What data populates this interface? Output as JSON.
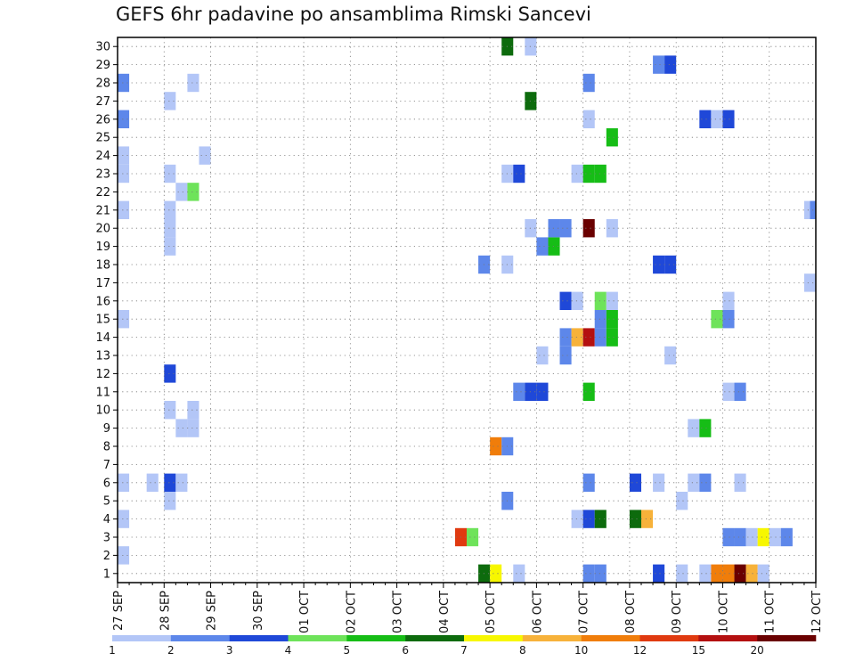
{
  "chart_data": {
    "type": "heatmap",
    "title": "GEFS 6hr padavine po ansamblima Rimski Sancevi",
    "xlabel": "",
    "ylabel": "",
    "x_ticks": [
      "27 SEP",
      "28 SEP",
      "29 SEP",
      "30 SEP",
      "01 OCT",
      "02 OCT",
      "03 OCT",
      "04 OCT",
      "05 OCT",
      "06 OCT",
      "07 OCT",
      "08 OCT",
      "09 OCT",
      "10 OCT",
      "11 OCT",
      "12 OCT"
    ],
    "y_ticks": [
      "1",
      "2",
      "3",
      "4",
      "5",
      "6",
      "7",
      "8",
      "9",
      "10",
      "11",
      "12",
      "13",
      "14",
      "15",
      "16",
      "17",
      "18",
      "19",
      "20",
      "21",
      "22",
      "23",
      "24",
      "25",
      "26",
      "27",
      "28",
      "29",
      "30"
    ],
    "xlim_steps": [
      0,
      60
    ],
    "ylim_members": [
      0.5,
      30.5
    ],
    "grid": true,
    "colorbar": {
      "labels": [
        "1",
        "2",
        "3",
        "4",
        "5",
        "6",
        "7",
        "8",
        "10",
        "12",
        "15",
        "20"
      ],
      "colors": [
        "#b3c6f7",
        "#5d87ea",
        "#1f48d8",
        "#6ee35a",
        "#16bd16",
        "#0d6b0d",
        "#f7f700",
        "#f7b23a",
        "#f07d0a",
        "#e03a10",
        "#b41010",
        "#6a0000"
      ]
    },
    "points": [
      [
        0.5,
        28,
        1
      ],
      [
        0.5,
        26,
        1
      ],
      [
        0.5,
        24,
        0
      ],
      [
        0.5,
        23,
        0
      ],
      [
        0.5,
        21,
        0
      ],
      [
        0.5,
        15,
        0
      ],
      [
        0.5,
        6,
        0
      ],
      [
        0.5,
        4,
        0
      ],
      [
        0.5,
        2,
        0
      ],
      [
        3,
        6,
        0
      ],
      [
        4.5,
        27,
        0
      ],
      [
        4.5,
        23,
        0
      ],
      [
        4.5,
        21,
        0
      ],
      [
        4.5,
        20,
        0
      ],
      [
        4.5,
        19,
        0
      ],
      [
        4.5,
        12,
        2
      ],
      [
        4.5,
        10,
        0
      ],
      [
        4.5,
        6,
        2
      ],
      [
        4.5,
        5,
        0
      ],
      [
        5.5,
        22,
        0
      ],
      [
        5.5,
        9,
        0
      ],
      [
        5.5,
        6,
        0
      ],
      [
        6.5,
        28,
        0
      ],
      [
        6.5,
        22,
        3
      ],
      [
        6.5,
        10,
        0
      ],
      [
        6.5,
        9,
        0
      ],
      [
        7.5,
        24,
        0
      ],
      [
        29.5,
        3,
        9
      ],
      [
        30.5,
        3,
        3
      ],
      [
        31.5,
        18,
        1
      ],
      [
        31.5,
        1,
        5
      ],
      [
        32.5,
        8,
        8
      ],
      [
        32.5,
        1,
        6
      ],
      [
        33.5,
        30,
        5
      ],
      [
        33.5,
        23,
        0
      ],
      [
        33.5,
        18,
        0
      ],
      [
        33.5,
        8,
        1
      ],
      [
        33.5,
        5,
        1
      ],
      [
        34.5,
        23,
        2
      ],
      [
        34.5,
        11,
        1
      ],
      [
        34.5,
        1,
        0
      ],
      [
        35.5,
        30,
        0
      ],
      [
        35.5,
        27,
        5
      ],
      [
        35.5,
        20,
        0
      ],
      [
        35.5,
        11,
        2
      ],
      [
        36.5,
        19,
        1
      ],
      [
        36.5,
        13,
        0
      ],
      [
        36.5,
        11,
        2
      ],
      [
        37.5,
        19,
        4
      ],
      [
        37.5,
        20,
        1
      ],
      [
        38.5,
        20,
        1
      ],
      [
        38.5,
        16,
        2
      ],
      [
        38.5,
        14,
        1
      ],
      [
        38.5,
        13,
        1
      ],
      [
        39.5,
        23,
        0
      ],
      [
        39.5,
        16,
        0
      ],
      [
        39.5,
        14,
        7
      ],
      [
        39.5,
        4,
        0
      ],
      [
        40.5,
        28,
        1
      ],
      [
        40.5,
        26,
        0
      ],
      [
        40.5,
        23,
        4
      ],
      [
        40.5,
        20,
        11
      ],
      [
        40.5,
        14,
        10
      ],
      [
        40.5,
        11,
        4
      ],
      [
        40.5,
        6,
        1
      ],
      [
        40.5,
        4,
        2
      ],
      [
        40.5,
        1,
        1
      ],
      [
        41.5,
        23,
        4
      ],
      [
        41.5,
        16,
        3
      ],
      [
        41.5,
        15,
        1
      ],
      [
        41.5,
        14,
        1
      ],
      [
        41.5,
        4,
        5
      ],
      [
        41.5,
        1,
        1
      ],
      [
        42.5,
        25,
        4
      ],
      [
        42.5,
        20,
        0
      ],
      [
        42.5,
        16,
        0
      ],
      [
        42.5,
        15,
        4
      ],
      [
        42.5,
        14,
        4
      ],
      [
        44.5,
        6,
        2
      ],
      [
        44.5,
        4,
        5
      ],
      [
        45.5,
        4,
        7
      ],
      [
        46.5,
        6,
        0
      ],
      [
        46.5,
        29,
        1
      ],
      [
        47.5,
        29,
        2
      ],
      [
        46.5,
        18,
        2
      ],
      [
        47.5,
        18,
        2
      ],
      [
        46.5,
        1,
        2
      ],
      [
        47.5,
        13,
        0
      ],
      [
        48.5,
        5,
        0
      ],
      [
        48.5,
        1,
        0
      ],
      [
        49.5,
        9,
        0
      ],
      [
        49.5,
        6,
        0
      ],
      [
        50.5,
        9,
        4
      ],
      [
        50.5,
        6,
        1
      ],
      [
        50.5,
        1,
        0
      ],
      [
        50.5,
        26,
        2
      ],
      [
        51.5,
        26,
        0
      ],
      [
        51.5,
        15,
        3
      ],
      [
        51.5,
        1,
        8
      ],
      [
        52.5,
        26,
        2
      ],
      [
        52.5,
        16,
        0
      ],
      [
        52.5,
        15,
        1
      ],
      [
        52.5,
        11,
        0
      ],
      [
        52.5,
        1,
        8
      ],
      [
        52.5,
        3,
        1
      ],
      [
        53.5,
        11,
        1
      ],
      [
        53.5,
        6,
        0
      ],
      [
        53.5,
        3,
        1
      ],
      [
        53.5,
        1,
        11
      ],
      [
        54.5,
        3,
        0
      ],
      [
        54.5,
        1,
        7
      ],
      [
        55.5,
        3,
        6
      ],
      [
        55.5,
        1,
        0
      ],
      [
        56.5,
        3,
        0
      ],
      [
        57.5,
        3,
        1
      ],
      [
        59.5,
        21,
        0
      ],
      [
        59.5,
        17,
        0
      ],
      [
        60,
        21,
        1
      ]
    ]
  }
}
